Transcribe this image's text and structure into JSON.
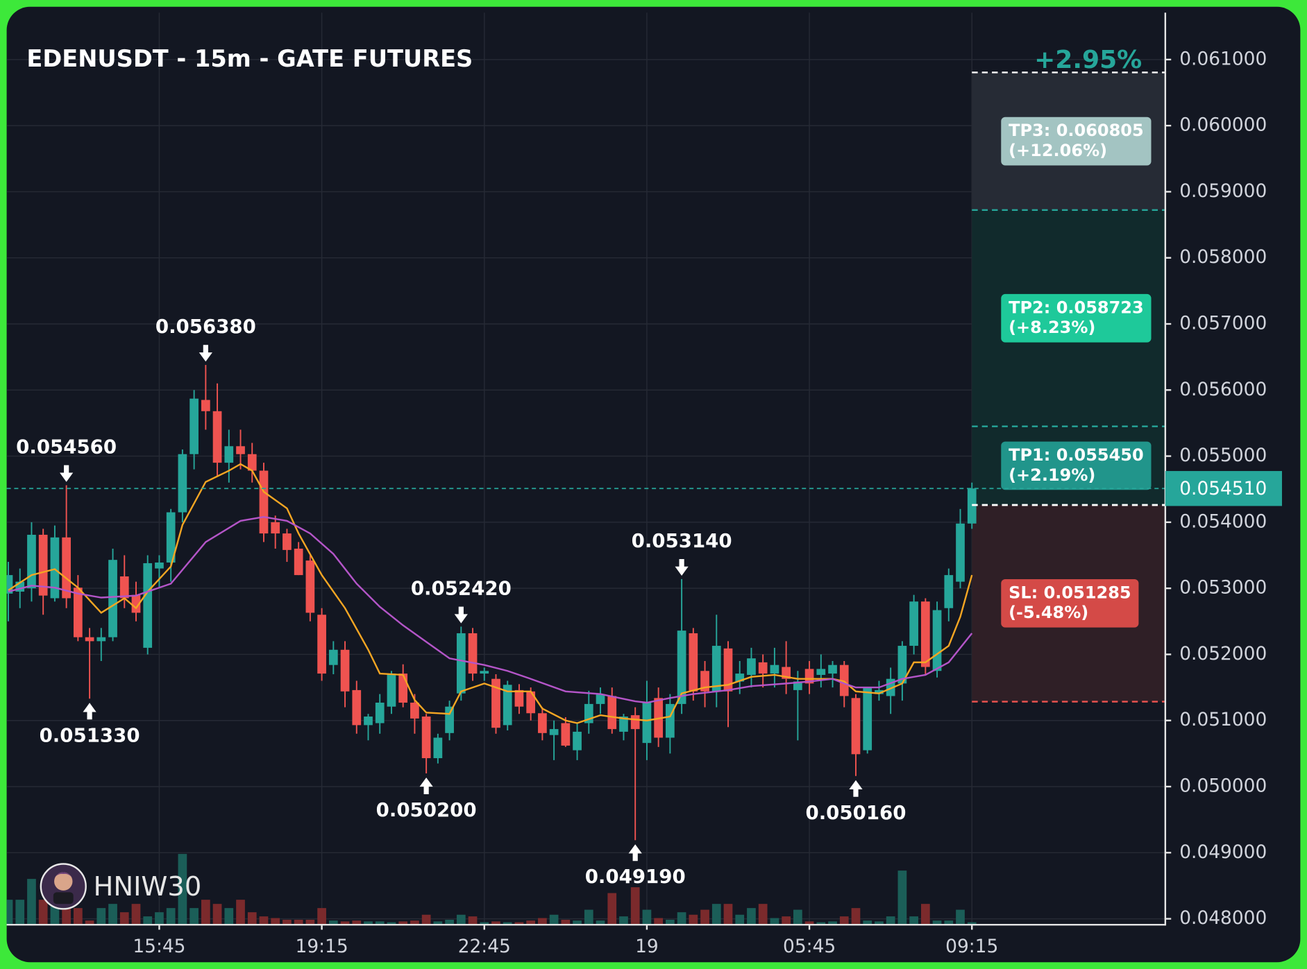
{
  "chart_data": {
    "type": "candlestick",
    "title": "EDENUSDT - 15m - GATE FUTURES",
    "change_label": "+2.95%",
    "watermark": "HNIW30",
    "categories": [
      null,
      null,
      null,
      null,
      null,
      null,
      null,
      null,
      null,
      null,
      null,
      null,
      null,
      "15:45",
      null,
      null,
      null,
      null,
      null,
      null,
      null,
      null,
      null,
      null,
      null,
      null,
      null,
      "19:15",
      null,
      null,
      null,
      null,
      null,
      null,
      null,
      null,
      null,
      null,
      null,
      null,
      null,
      "22:45",
      null,
      null,
      null,
      null,
      null,
      null,
      null,
      null,
      null,
      null,
      null,
      null,
      null,
      "19",
      null,
      null,
      null,
      null,
      null,
      null,
      null,
      null,
      null,
      null,
      null,
      null,
      null,
      "05:45",
      null,
      null,
      null,
      null,
      null,
      null,
      null,
      null,
      null,
      null,
      null,
      null,
      null,
      "09:15"
    ],
    "open": [
      0.05292,
      0.05295,
      0.053,
      0.05381,
      0.05285,
      0.05377,
      0.05301,
      0.05226,
      0.0522,
      0.05226,
      0.05318,
      0.0529,
      0.0521,
      0.0533,
      0.05339,
      0.05415,
      0.05503,
      0.05585,
      0.05568,
      0.0549,
      0.05515,
      0.05503,
      0.05478,
      0.054,
      0.05383,
      0.0536,
      0.05342,
      0.0526,
      0.05184,
      0.05207,
      0.05146,
      0.05093,
      0.05096,
      0.05121,
      0.05171,
      0.05127,
      0.05106,
      0.05043,
      0.05081,
      0.05141,
      0.05232,
      0.05171,
      0.05163,
      0.05093,
      0.05146,
      0.05144,
      0.05111,
      0.05078,
      0.05096,
      0.05055,
      0.05096,
      0.05125,
      0.05137,
      0.05083,
      0.05108,
      0.05066,
      0.05134,
      0.05074,
      0.05125,
      0.05232,
      0.05175,
      0.05144,
      0.05209,
      0.05159,
      0.05169,
      0.05188,
      0.05171,
      0.05181,
      0.05146,
      0.05178,
      0.05169,
      0.05171,
      0.05184,
      0.05134,
      0.05055,
      0.0514,
      0.05137,
      0.05156,
      0.05213,
      0.0528,
      0.05175,
      0.0527,
      0.0531,
      0.05398
    ],
    "high": [
      0.0534,
      0.0533,
      0.054,
      0.0539,
      0.05395,
      0.05456,
      0.0532,
      0.0524,
      0.0524,
      0.0536,
      0.0535,
      0.0531,
      0.0535,
      0.0535,
      0.0542,
      0.0551,
      0.056,
      0.05638,
      0.0561,
      0.0554,
      0.0554,
      0.0552,
      0.0549,
      0.0541,
      0.0539,
      0.0537,
      0.0535,
      0.0527,
      0.0522,
      0.0522,
      0.0516,
      0.0511,
      0.0514,
      0.05175,
      0.05185,
      0.0514,
      0.0511,
      0.0508,
      0.0513,
      0.05242,
      0.0524,
      0.0518,
      0.0517,
      0.0516,
      0.05155,
      0.0515,
      0.0512,
      0.051,
      0.05105,
      0.05095,
      0.05145,
      0.0515,
      0.0515,
      0.0511,
      0.0512,
      0.0516,
      0.0515,
      0.0514,
      0.05314,
      0.0524,
      0.0519,
      0.0526,
      0.0522,
      0.0519,
      0.0521,
      0.052,
      0.0521,
      0.0522,
      0.05175,
      0.0519,
      0.052,
      0.0519,
      0.0519,
      0.0514,
      0.0515,
      0.0516,
      0.0518,
      0.0522,
      0.0529,
      0.05285,
      0.0528,
      0.0533,
      0.0542,
      0.0546
    ],
    "low": [
      0.0525,
      0.0527,
      0.0528,
      0.0526,
      0.0528,
      0.0527,
      0.0522,
      0.05133,
      0.0519,
      0.0522,
      0.0527,
      0.0525,
      0.052,
      0.053,
      0.0531,
      0.054,
      0.0548,
      0.0554,
      0.0547,
      0.0546,
      0.0548,
      0.0546,
      0.0537,
      0.0536,
      0.0534,
      0.0532,
      0.0525,
      0.0516,
      0.0517,
      0.0512,
      0.0508,
      0.0507,
      0.0508,
      0.0511,
      0.0512,
      0.0508,
      0.0502,
      0.05035,
      0.0507,
      0.0513,
      0.0516,
      0.0516,
      0.0508,
      0.05085,
      0.0511,
      0.051,
      0.0507,
      0.0504,
      0.0506,
      0.0504,
      0.0508,
      0.0511,
      0.0508,
      0.0507,
      0.04919,
      0.0504,
      0.0506,
      0.0505,
      0.0511,
      0.0513,
      0.0512,
      0.0512,
      0.0509,
      0.0514,
      0.0515,
      0.0515,
      0.0515,
      0.0514,
      0.0507,
      0.0514,
      0.0515,
      0.0515,
      0.0512,
      0.05016,
      0.0505,
      0.0513,
      0.0511,
      0.0513,
      0.052,
      0.0517,
      0.05165,
      0.0525,
      0.053,
      0.0539
    ],
    "close": [
      0.0532,
      0.0531,
      0.05381,
      0.05289,
      0.05377,
      0.05285,
      0.05226,
      0.0522,
      0.05226,
      0.05343,
      0.05285,
      0.05263,
      0.05338,
      0.05339,
      0.05415,
      0.05503,
      0.05587,
      0.05568,
      0.0549,
      0.05515,
      0.05503,
      0.05478,
      0.05383,
      0.05383,
      0.05358,
      0.0532,
      0.05263,
      0.05171,
      0.05207,
      0.05144,
      0.05093,
      0.05106,
      0.05127,
      0.05171,
      0.05127,
      0.05103,
      0.05043,
      0.05074,
      0.05121,
      0.05232,
      0.05171,
      0.05175,
      0.05089,
      0.05154,
      0.05121,
      0.05111,
      0.05081,
      0.05087,
      0.05062,
      0.05083,
      0.05125,
      0.0514,
      0.05087,
      0.05106,
      0.05087,
      0.05127,
      0.05074,
      0.05125,
      0.05236,
      0.05144,
      0.05144,
      0.05213,
      0.05144,
      0.05171,
      0.05194,
      0.05171,
      0.05184,
      0.05163,
      0.05159,
      0.05156,
      0.05178,
      0.05184,
      0.05137,
      0.05049,
      0.0515,
      0.05146,
      0.05163,
      0.05213,
      0.0528,
      0.05181,
      0.05267,
      0.0532,
      0.05398,
      0.05451
    ],
    "volume": [
      30,
      30,
      55,
      30,
      30,
      25,
      20,
      5,
      20,
      25,
      15,
      25,
      10,
      15,
      20,
      85,
      20,
      30,
      25,
      20,
      30,
      15,
      10,
      8,
      6,
      6,
      6,
      20,
      5,
      4,
      5,
      4,
      4,
      3,
      4,
      5,
      12,
      4,
      6,
      12,
      10,
      3,
      4,
      3,
      3,
      5,
      8,
      12,
      6,
      5,
      18,
      5,
      38,
      10,
      45,
      18,
      8,
      6,
      15,
      12,
      18,
      25,
      25,
      12,
      20,
      25,
      8,
      10,
      18,
      4,
      3,
      4,
      10,
      20,
      5,
      4,
      10,
      65,
      10,
      25,
      5,
      5,
      18,
      3
    ],
    "up_color": "#26a69a",
    "down_color": "#ef5350",
    "volume_up_color": "#1b5e58",
    "volume_down_color": "#7b2a2c",
    "averages": [
      {
        "color": "#f5a623",
        "x": [
          0,
          2,
          4,
          6,
          8,
          10,
          11,
          12,
          14,
          15,
          17,
          19,
          20,
          21,
          22,
          24,
          25,
          27,
          29,
          31,
          32,
          34,
          35,
          36,
          38,
          39,
          41,
          43,
          45,
          46,
          48,
          49,
          51,
          53,
          55,
          57,
          58,
          60,
          62,
          64,
          66,
          68,
          71,
          72,
          73,
          75,
          77,
          78,
          79,
          81,
          82,
          83
        ],
        "values": [
          0.05297,
          0.0532,
          0.05329,
          0.05301,
          0.05263,
          0.05285,
          0.0527,
          0.05295,
          0.05333,
          0.05396,
          0.05461,
          0.05478,
          0.05488,
          0.05478,
          0.05446,
          0.05421,
          0.05383,
          0.0532,
          0.0527,
          0.05207,
          0.05171,
          0.05169,
          0.05131,
          0.05112,
          0.0511,
          0.05144,
          0.05156,
          0.05144,
          0.05144,
          0.05118,
          0.051,
          0.05096,
          0.05108,
          0.05103,
          0.051,
          0.05106,
          0.05141,
          0.0515,
          0.05154,
          0.05166,
          0.05169,
          0.05163,
          0.05163,
          0.05159,
          0.05144,
          0.05141,
          0.05156,
          0.05188,
          0.05188,
          0.05213,
          0.05257,
          0.0532
        ]
      },
      {
        "color": "#b455c8",
        "x": [
          0,
          2,
          4,
          6,
          8,
          11,
          14,
          17,
          20,
          22,
          24,
          26,
          28,
          30,
          32,
          34,
          36,
          38,
          41,
          43,
          45,
          48,
          51,
          54,
          55,
          57,
          59,
          62,
          64,
          67,
          69,
          71,
          72,
          73,
          75,
          77,
          79,
          81,
          83
        ],
        "values": [
          0.05295,
          0.05304,
          0.05301,
          0.05292,
          0.05286,
          0.05289,
          0.05307,
          0.0537,
          0.05402,
          0.05408,
          0.05402,
          0.05383,
          0.05352,
          0.05307,
          0.05272,
          0.05244,
          0.05219,
          0.05194,
          0.05184,
          0.05175,
          0.05163,
          0.05144,
          0.0514,
          0.05129,
          0.05127,
          0.05134,
          0.0514,
          0.05146,
          0.05152,
          0.05156,
          0.05159,
          0.05163,
          0.05156,
          0.0515,
          0.0515,
          0.05163,
          0.05169,
          0.05188,
          0.05232
        ]
      }
    ],
    "annotations": [
      {
        "value": 0.05456,
        "label": "0.054560",
        "index": 5,
        "dir": "down"
      },
      {
        "value": 0.05133,
        "label": "0.051330",
        "index": 7,
        "dir": "up"
      },
      {
        "value": 0.05638,
        "label": "0.056380",
        "index": 17,
        "dir": "down"
      },
      {
        "value": 0.0502,
        "label": "0.050200",
        "index": 36,
        "dir": "up"
      },
      {
        "value": 0.05242,
        "label": "0.052420",
        "index": 39,
        "dir": "down"
      },
      {
        "value": 0.04919,
        "label": "0.049190",
        "index": 54,
        "dir": "up"
      },
      {
        "value": 0.05314,
        "label": "0.053140",
        "index": 58,
        "dir": "down"
      },
      {
        "value": 0.05016,
        "label": "0.050160",
        "index": 73,
        "dir": "up"
      }
    ],
    "entry": 0.05426,
    "entry_color": "#ffffff",
    "levels": [
      {
        "label": "TP3: 0.060805",
        "note": "(+12.06%)",
        "value": 0.060805,
        "color": "#a3c4c2",
        "line_color": "#ffffff",
        "zone_color": "#262b35"
      },
      {
        "label": "TP2: 0.058723",
        "note": "(+8.23%)",
        "value": 0.058723,
        "color": "#1ec99a",
        "line_color": "#26a69a",
        "zone_color": "#112a2c"
      },
      {
        "label": "TP1: 0.055450",
        "note": "(+2.19%)",
        "value": 0.05545,
        "color": "#21958b",
        "line_color": "#26a69a",
        "zone_color": "#112a2c"
      },
      {
        "label": "SL: 0.051285",
        "note": "(-5.48%)",
        "value": 0.051285,
        "color": "#d44a47",
        "line_color": "#ef5350",
        "zone_color": "#2f1f26"
      }
    ],
    "last_price": {
      "value": 0.05451,
      "label": "0.054510"
    },
    "last_color": "#26a69a",
    "ylim": [
      0.04791,
      0.06171
    ],
    "yticks": [
      {
        "value": 0.048,
        "label": "0.048000"
      },
      {
        "value": 0.049,
        "label": "0.049000"
      },
      {
        "value": 0.05,
        "label": "0.050000"
      },
      {
        "value": 0.051,
        "label": "0.051000"
      },
      {
        "value": 0.052,
        "label": "0.052000"
      },
      {
        "value": 0.053,
        "label": "0.053000"
      },
      {
        "value": 0.054,
        "label": "0.054000"
      },
      {
        "value": 0.055,
        "label": "0.055000"
      },
      {
        "value": 0.056,
        "label": "0.056000"
      },
      {
        "value": 0.057,
        "label": "0.057000"
      },
      {
        "value": 0.058,
        "label": "0.058000"
      },
      {
        "value": 0.059,
        "label": "0.059000"
      },
      {
        "value": 0.06,
        "label": "0.060000"
      },
      {
        "value": 0.061,
        "label": "0.061000"
      }
    ],
    "grid": true
  }
}
